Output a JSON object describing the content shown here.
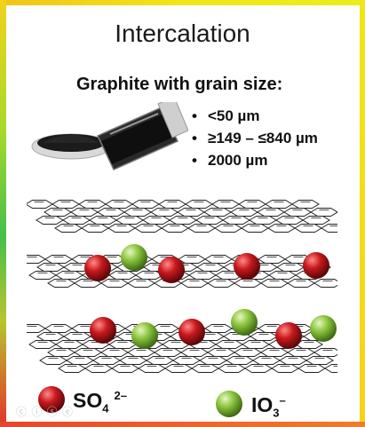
{
  "title": "Intercalation",
  "subtitle": "Graphite with grain size:",
  "grain_sizes": [
    "<50 µm",
    "≥149 – ≤840 µm",
    "2000 µm"
  ],
  "legend": {
    "sulfate": {
      "base": "SO",
      "sub": "4",
      "sup": "2–",
      "color": "#c8191e"
    },
    "iodate": {
      "base": "IO",
      "sub": "3",
      "sup": "–",
      "color": "#8cc63f"
    }
  },
  "colors": {
    "sulfate": "#c8191e",
    "iodate": "#8cc63f",
    "frame_top": "#f2e519",
    "frame_bottom": "#f07d27",
    "frame_left": "#45c04a"
  },
  "icons": [
    "graphite-powder-dish-icon",
    "graphite-vial-icon",
    "sulfate-ion-icon",
    "iodate-ion-icon"
  ]
}
